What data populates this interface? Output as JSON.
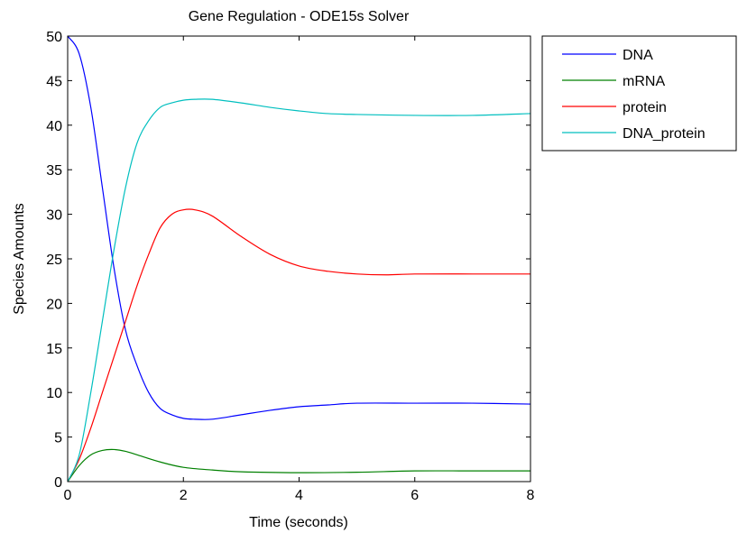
{
  "chart_data": {
    "type": "line",
    "title": "Gene Regulation - ODE15s Solver",
    "xlabel": "Time (seconds)",
    "ylabel": "Species Amounts",
    "xlim": [
      0,
      8
    ],
    "ylim": [
      0,
      50
    ],
    "xticks": [
      0,
      2,
      4,
      6,
      8
    ],
    "yticks": [
      0,
      5,
      10,
      15,
      20,
      25,
      30,
      35,
      40,
      45,
      50
    ],
    "grid": false,
    "legend_position": "outside-right-top",
    "series": [
      {
        "name": "DNA",
        "color": "#0000ff",
        "x": [
          0,
          0.2,
          0.4,
          0.6,
          0.8,
          1.0,
          1.2,
          1.4,
          1.6,
          1.8,
          2.0,
          2.2,
          2.5,
          3.0,
          3.5,
          4.0,
          4.5,
          5.0,
          6.0,
          7.0,
          8.0
        ],
        "y": [
          50,
          48,
          42,
          33,
          24,
          17,
          13,
          10,
          8.2,
          7.5,
          7.1,
          7.0,
          7.0,
          7.5,
          8.0,
          8.4,
          8.6,
          8.8,
          8.8,
          8.8,
          8.7
        ]
      },
      {
        "name": "mRNA",
        "color": "#008000",
        "x": [
          0,
          0.2,
          0.4,
          0.6,
          0.8,
          1.0,
          1.2,
          1.6,
          2.0,
          2.5,
          3.0,
          4.0,
          5.0,
          6.0,
          7.0,
          8.0
        ],
        "y": [
          0,
          1.8,
          3.0,
          3.5,
          3.6,
          3.4,
          3.0,
          2.2,
          1.6,
          1.3,
          1.1,
          1.0,
          1.05,
          1.2,
          1.2,
          1.2
        ]
      },
      {
        "name": "protein",
        "color": "#ff0000",
        "x": [
          0,
          0.2,
          0.4,
          0.6,
          0.8,
          1.0,
          1.2,
          1.4,
          1.6,
          1.8,
          2.0,
          2.2,
          2.5,
          3.0,
          3.5,
          4.0,
          4.5,
          5.0,
          5.5,
          6.0,
          7.0,
          8.0
        ],
        "y": [
          0,
          2.5,
          6,
          10,
          14,
          18,
          22,
          25.5,
          28.5,
          30,
          30.5,
          30.5,
          29.8,
          27.5,
          25.5,
          24.2,
          23.6,
          23.3,
          23.2,
          23.3,
          23.3,
          23.3
        ]
      },
      {
        "name": "DNA_protein",
        "color": "#00bfbf",
        "x": [
          0,
          0.2,
          0.4,
          0.6,
          0.8,
          1.0,
          1.2,
          1.4,
          1.6,
          1.8,
          2.0,
          2.2,
          2.5,
          3.0,
          3.5,
          4.0,
          4.5,
          5.0,
          6.0,
          7.0,
          8.0
        ],
        "y": [
          0,
          3,
          10,
          18,
          26,
          33,
          38,
          40.5,
          42,
          42.5,
          42.8,
          42.9,
          42.9,
          42.5,
          42.0,
          41.6,
          41.3,
          41.2,
          41.1,
          41.1,
          41.3
        ]
      }
    ]
  }
}
